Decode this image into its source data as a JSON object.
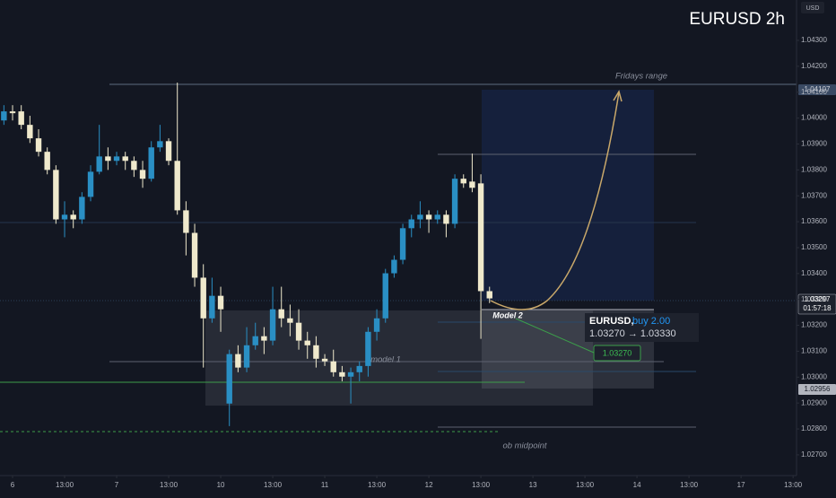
{
  "chart_data": {
    "type": "candlestick",
    "title": "EURUSD 2h",
    "currency": "USD",
    "x": [
      -1,
      0,
      1,
      2,
      3,
      4,
      5,
      6,
      7,
      8,
      9,
      10,
      11,
      12,
      13,
      14,
      15,
      16,
      17,
      18,
      19,
      20,
      21,
      22,
      23,
      24,
      25,
      26,
      27,
      28,
      29,
      30,
      31,
      32,
      33,
      34,
      35,
      36,
      37,
      38,
      39,
      40,
      41,
      42,
      43,
      44,
      45,
      46,
      47,
      48,
      49,
      50,
      51,
      52,
      53,
      54,
      55
    ],
    "open": [
      1.03991,
      1.04026,
      1.04026,
      1.03974,
      1.03922,
      1.0387,
      1.038,
      1.03609,
      1.03627,
      1.03609,
      1.03696,
      1.03793,
      1.03852,
      1.03835,
      1.03852,
      1.03835,
      1.038,
      1.03766,
      1.03887,
      1.03911,
      1.03835,
      1.03644,
      1.03557,
      1.03384,
      1.03227,
      1.03314,
      1.02898,
      1.03089,
      1.03037,
      1.03123,
      1.03158,
      1.03141,
      1.03262,
      1.03227,
      1.0321,
      1.03141,
      1.03123,
      1.03071,
      1.03061,
      1.03019,
      1.03002,
      1.03019,
      1.03043,
      1.03175,
      1.03227,
      1.03401,
      1.03453,
      1.03575,
      1.03609,
      1.03627,
      1.03609,
      1.03627,
      1.03592,
      1.03766,
      1.03755,
      1.03748,
      1.03332
    ],
    "high": [
      1.0405,
      1.0405,
      1.0405,
      1.04009,
      1.03957,
      1.03887,
      1.03818,
      1.03679,
      1.03644,
      1.03714,
      1.03818,
      1.03974,
      1.03887,
      1.0387,
      1.0387,
      1.03852,
      1.03835,
      1.03911,
      1.03974,
      1.03922,
      1.04137,
      1.03679,
      1.03592,
      1.03436,
      1.03384,
      1.03349,
      1.03106,
      1.03123,
      1.03193,
      1.0321,
      1.03193,
      1.03349,
      1.03349,
      1.0328,
      1.03262,
      1.03175,
      1.03158,
      1.03089,
      1.03106,
      1.03043,
      1.03037,
      1.03061,
      1.03193,
      1.03262,
      1.03418,
      1.0347,
      1.03592,
      1.03627,
      1.03679,
      1.03644,
      1.03644,
      1.03644,
      1.03783,
      1.03783,
      1.03863,
      1.03783,
      1.03349
    ],
    "low": [
      1.03974,
      1.03991,
      1.03957,
      1.03904,
      1.03852,
      1.03783,
      1.03592,
      1.0354,
      1.03575,
      1.03592,
      1.03679,
      1.03783,
      1.038,
      1.03818,
      1.038,
      1.03773,
      1.03731,
      1.03755,
      1.0387,
      1.03818,
      1.03627,
      1.0347,
      1.03349,
      1.03037,
      1.0321,
      1.03175,
      1.02811,
      1.03019,
      1.03019,
      1.03106,
      1.03089,
      1.03123,
      1.03193,
      1.03158,
      1.03106,
      1.03071,
      1.03037,
      1.03043,
      1.03002,
      1.02984,
      1.02898,
      1.02984,
      1.03002,
      1.03141,
      1.0321,
      1.03384,
      1.03436,
      1.0354,
      1.03575,
      1.03557,
      1.03592,
      1.0354,
      1.03575,
      1.03731,
      1.03714,
      1.03148,
      1.03286
    ],
    "close": [
      1.04026,
      1.04019,
      1.03974,
      1.03922,
      1.0387,
      1.038,
      1.03609,
      1.03627,
      1.03609,
      1.03696,
      1.03793,
      1.03852,
      1.03835,
      1.03852,
      1.03835,
      1.038,
      1.03766,
      1.03887,
      1.03911,
      1.03835,
      1.03644,
      1.03557,
      1.03384,
      1.03227,
      1.03314,
      1.03262,
      1.03089,
      1.03037,
      1.03123,
      1.03158,
      1.03141,
      1.03262,
      1.03227,
      1.0321,
      1.03141,
      1.03123,
      1.03071,
      1.03061,
      1.03019,
      1.03002,
      1.03019,
      1.03043,
      1.03175,
      1.03227,
      1.03401,
      1.03453,
      1.03575,
      1.03609,
      1.03627,
      1.03609,
      1.03627,
      1.03592,
      1.03766,
      1.03748,
      1.03731,
      1.03332,
      1.03304
    ],
    "up_color": "#2a8fc4",
    "down_color": "#efe9cc",
    "xlim": [
      -1.45,
      90.4
    ],
    "xticks": [
      {
        "value": 0,
        "label": "6"
      },
      {
        "value": 6,
        "label": "13:00"
      },
      {
        "value": 12,
        "label": "7"
      },
      {
        "value": 18,
        "label": "13:00"
      },
      {
        "value": 24,
        "label": "10"
      },
      {
        "value": 30,
        "label": "13:00"
      },
      {
        "value": 36,
        "label": "11"
      },
      {
        "value": 42,
        "label": "13:00"
      },
      {
        "value": 48,
        "label": "12"
      },
      {
        "value": 54,
        "label": "13:00"
      },
      {
        "value": 60,
        "label": "13"
      },
      {
        "value": 66,
        "label": "13:00"
      },
      {
        "value": 72,
        "label": "14"
      },
      {
        "value": 78,
        "label": "13:00"
      },
      {
        "value": 84,
        "label": "17"
      },
      {
        "value": 90,
        "label": "13:00"
      }
    ],
    "ylim": [
      1.0262,
      1.04456
    ],
    "yticks": [
      {
        "value": 1.043,
        "label": "1.04300"
      },
      {
        "value": 1.042,
        "label": "1.04200"
      },
      {
        "value": 1.041,
        "label": "1.04100"
      },
      {
        "value": 1.04,
        "label": "1.04000"
      },
      {
        "value": 1.039,
        "label": "1.03900"
      },
      {
        "value": 1.038,
        "label": "1.03800"
      },
      {
        "value": 1.037,
        "label": "1.03700"
      },
      {
        "value": 1.036,
        "label": "1.03600"
      },
      {
        "value": 1.035,
        "label": "1.03500"
      },
      {
        "value": 1.034,
        "label": "1.03400"
      },
      {
        "value": 1.033,
        "label": "1.03300"
      },
      {
        "value": 1.032,
        "label": "1.03200"
      },
      {
        "value": 1.031,
        "label": "1.03100"
      },
      {
        "value": 1.03,
        "label": "1.03000"
      },
      {
        "value": 1.029,
        "label": "1.02900"
      },
      {
        "value": 1.028,
        "label": "1.02800"
      },
      {
        "value": 1.027,
        "label": "1.02700"
      }
    ],
    "annotations": {
      "fridays_range": "Fridays range",
      "model_1": "model 1",
      "model_2": "Model 2",
      "ob_midpoint": "ob midpoint",
      "position_symbol": "EURUSD,",
      "position_side": "buy 2.00",
      "position_prices": "1.03270 → 1.03330",
      "entry_label": "1.03270",
      "range_tag": "1.04107",
      "last_price_tag": "1.03297",
      "countdown": "01:57:18",
      "level_tag": "1.02956"
    }
  }
}
